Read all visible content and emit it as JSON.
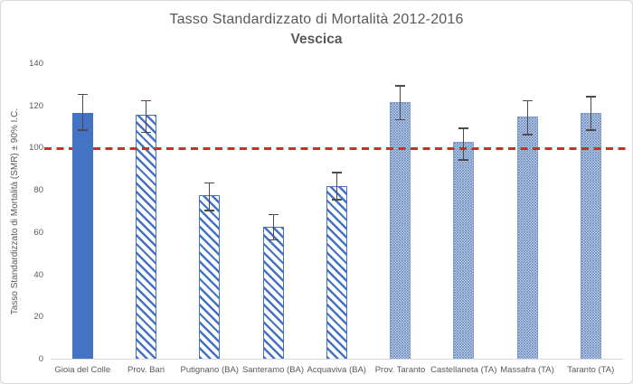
{
  "header": {
    "title": "Tasso Standardizzato di Mortalità 2012-2016",
    "subtitle": "Vescica"
  },
  "chart_data": {
    "type": "bar",
    "title": "Tasso Standardizzato di Mortalità 2012-2016",
    "subtitle": "Vescica",
    "xlabel": "",
    "ylabel": "Tasso Standardizzato di Mortalità (SMR) ± 90% I.C.",
    "ylim": [
      0,
      140
    ],
    "yticks": [
      0,
      20,
      40,
      60,
      80,
      100,
      120,
      140
    ],
    "grid": false,
    "legend": "none",
    "categories": [
      "Gioia del Colle",
      "Prov. Bari",
      "Putignano (BA)",
      "Santeramo (BA)",
      "Acquaviva (BA)",
      "Prov. Taranto",
      "Castellaneta (TA)",
      "Massafra (TA)",
      "Taranto (TA)"
    ],
    "series": [
      {
        "name": "SMR",
        "values": [
          117,
          116,
          78,
          63,
          82,
          122,
          103,
          115,
          117
        ],
        "ci_low": [
          109,
          108,
          71,
          57,
          76,
          114,
          95,
          107,
          109
        ],
        "ci_high": [
          126,
          123,
          84,
          69,
          89,
          130,
          110,
          123,
          125
        ]
      }
    ],
    "bar_styles": [
      "solid",
      "hatch",
      "hatch",
      "hatch",
      "hatch",
      "dots",
      "dots",
      "dots",
      "dots"
    ],
    "reference_line": {
      "value": 100,
      "style": "dashed",
      "color": "#C9302C"
    },
    "colors": {
      "solid_fill": "#4472C4",
      "hatch_stroke": "#4472C4",
      "dot_fill": "#6c8ec2",
      "dot_border": "#7f9bd1",
      "error_bar": "#4a4a4a",
      "axis_line": "#d9d9d9",
      "text": "#595959",
      "reference": "#C9302C"
    }
  }
}
